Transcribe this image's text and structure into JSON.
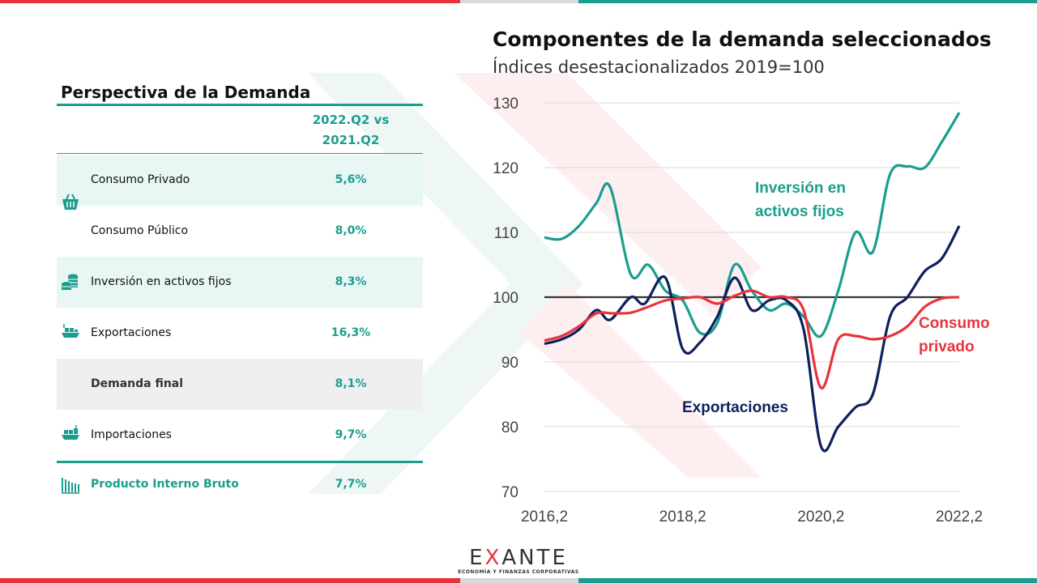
{
  "colors": {
    "teal": "#1a9e8f",
    "red": "#e8333b",
    "navy": "#0e1f5c",
    "baseline": "#333333"
  },
  "table": {
    "title": "Perspectiva de la Demanda",
    "column_header": "2022.Q2 vs 2021.Q2",
    "rows": [
      {
        "label": "Consumo Privado",
        "value": "5,6%",
        "icon": "shopping-basket-icon"
      },
      {
        "label": "Consumo Público",
        "value": "8,0%",
        "icon": ""
      },
      {
        "label": "Inversión en activos fijos",
        "value": "8,3%",
        "icon": "coins-icon"
      },
      {
        "label": "Exportaciones",
        "value": "16,3%",
        "icon": "cargo-ship-icon"
      },
      {
        "label": "Demanda final",
        "value": "8,1%",
        "icon": ""
      },
      {
        "label": "Importaciones",
        "value": "9,7%",
        "icon": "cargo-ship-icon"
      }
    ],
    "total": {
      "label": "Producto Interno Bruto",
      "value": "7,7%",
      "icon": "bar-building-icon"
    }
  },
  "chart_data": {
    "type": "line",
    "title": "Componentes de la demanda seleccionados",
    "subtitle": "Índices desestacionalizados 2019=100",
    "xlabel": "",
    "ylabel": "",
    "ylim": [
      70,
      130
    ],
    "yticks": [
      70,
      80,
      90,
      100,
      110,
      120,
      130
    ],
    "xlim": [
      2016.25,
      2022.25
    ],
    "xticks": [
      {
        "value": 2016.25,
        "label": "2016,2"
      },
      {
        "value": 2018.25,
        "label": "2018,2"
      },
      {
        "value": 2020.25,
        "label": "2020,2"
      },
      {
        "value": 2022.25,
        "label": "2022,2"
      }
    ],
    "grid": true,
    "baseline": 100,
    "series": [
      {
        "name": "Inversión en activos fijos",
        "label_lines": [
          "Inversión en",
          "activos fijos"
        ],
        "color": "#1a9e8f",
        "points": [
          [
            2016.25,
            109.2
          ],
          [
            2016.5,
            109
          ],
          [
            2016.75,
            111
          ],
          [
            2017.0,
            114.5
          ],
          [
            2017.2,
            117
          ],
          [
            2017.5,
            103.5
          ],
          [
            2017.75,
            105
          ],
          [
            2018.0,
            101
          ],
          [
            2018.25,
            99.5
          ],
          [
            2018.5,
            94.5
          ],
          [
            2018.75,
            96
          ],
          [
            2019.0,
            105
          ],
          [
            2019.25,
            101
          ],
          [
            2019.5,
            98
          ],
          [
            2019.75,
            99
          ],
          [
            2020.0,
            97
          ],
          [
            2020.25,
            94
          ],
          [
            2020.5,
            101
          ],
          [
            2020.75,
            110
          ],
          [
            2021.0,
            107
          ],
          [
            2021.25,
            119
          ],
          [
            2021.5,
            120.2
          ],
          [
            2021.75,
            120
          ],
          [
            2022.0,
            124
          ],
          [
            2022.25,
            128.5
          ]
        ]
      },
      {
        "name": "Exportaciones",
        "label_lines": [
          "Exportaciones"
        ],
        "color": "#0e1f5c",
        "points": [
          [
            2016.25,
            92.8
          ],
          [
            2016.5,
            93.5
          ],
          [
            2016.75,
            95
          ],
          [
            2017.0,
            98
          ],
          [
            2017.2,
            96.5
          ],
          [
            2017.5,
            100
          ],
          [
            2017.7,
            99
          ],
          [
            2018.0,
            103
          ],
          [
            2018.25,
            92
          ],
          [
            2018.5,
            93
          ],
          [
            2018.75,
            97
          ],
          [
            2019.0,
            103
          ],
          [
            2019.25,
            98
          ],
          [
            2019.5,
            99.5
          ],
          [
            2019.75,
            99.5
          ],
          [
            2020.0,
            95
          ],
          [
            2020.25,
            77
          ],
          [
            2020.5,
            80
          ],
          [
            2020.75,
            83
          ],
          [
            2021.0,
            85
          ],
          [
            2021.25,
            97
          ],
          [
            2021.5,
            100
          ],
          [
            2021.75,
            104
          ],
          [
            2022.0,
            106
          ],
          [
            2022.25,
            111
          ]
        ]
      },
      {
        "name": "Consumo privado",
        "label_lines": [
          "Consumo",
          "privado"
        ],
        "color": "#e8333b",
        "points": [
          [
            2016.25,
            93.3
          ],
          [
            2016.5,
            94
          ],
          [
            2016.75,
            95.5
          ],
          [
            2017.0,
            97.5
          ],
          [
            2017.25,
            97.5
          ],
          [
            2017.5,
            97.6
          ],
          [
            2017.75,
            98.5
          ],
          [
            2018.0,
            99.5
          ],
          [
            2018.25,
            99.8
          ],
          [
            2018.5,
            100
          ],
          [
            2018.75,
            99
          ],
          [
            2019.0,
            100.2
          ],
          [
            2019.25,
            101
          ],
          [
            2019.5,
            100
          ],
          [
            2019.75,
            100
          ],
          [
            2020.0,
            98
          ],
          [
            2020.25,
            86
          ],
          [
            2020.5,
            93.5
          ],
          [
            2020.75,
            94
          ],
          [
            2021.0,
            93.5
          ],
          [
            2021.25,
            94
          ],
          [
            2021.5,
            95.5
          ],
          [
            2021.75,
            98.5
          ],
          [
            2022.0,
            99.8
          ],
          [
            2022.25,
            100
          ]
        ]
      }
    ]
  },
  "logo": {
    "pre": "E",
    "x": "X",
    "post": "ANTE",
    "tagline": "ECONOMÍA Y FINANZAS CORPORATIVAS"
  }
}
